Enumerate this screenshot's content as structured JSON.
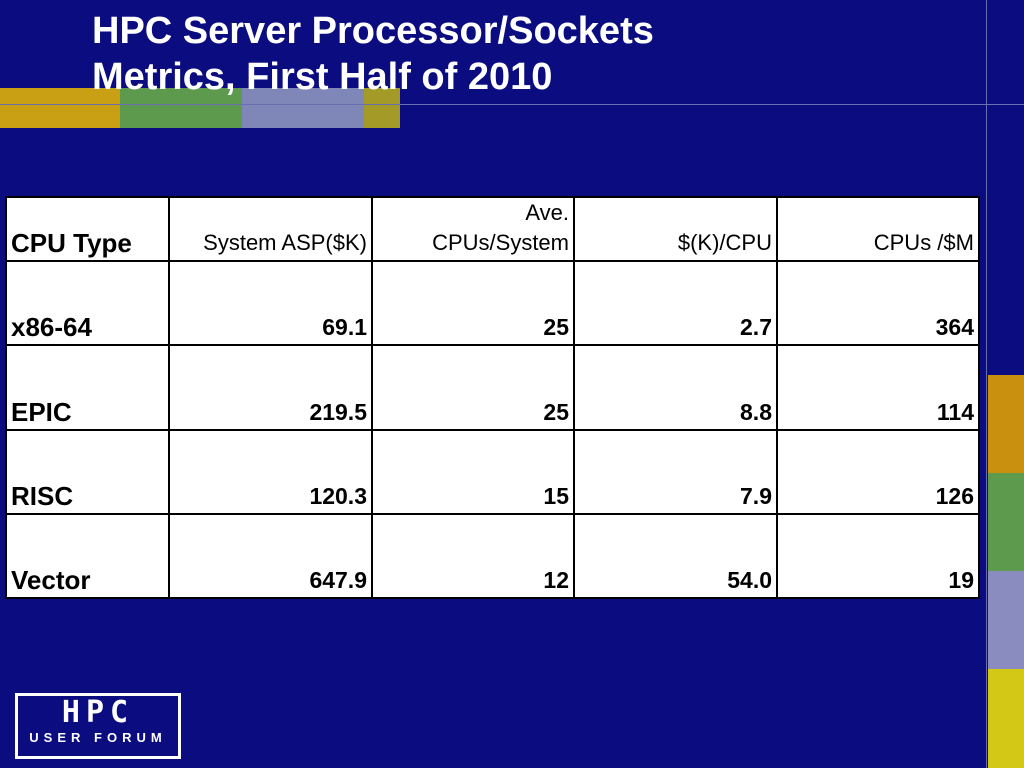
{
  "title": [
    "HPC Server Processor/Sockets",
    "Metrics, First Half of 2010"
  ],
  "table": {
    "header": [
      "CPU Type",
      "System ASP($K)",
      "Ave.\nCPUs/System",
      "$(K)/CPU",
      "CPUs /$M"
    ],
    "rows": [
      [
        "x86-64",
        "69.1",
        "25",
        "2.7",
        "364"
      ],
      [
        "EPIC",
        "219.5",
        "25",
        "8.8",
        "114"
      ],
      [
        "RISC",
        "120.3",
        "15",
        "7.9",
        "126"
      ],
      [
        "Vector",
        "647.9",
        "12",
        "54.0",
        "19"
      ]
    ]
  },
  "logo": {
    "mark": "HPC",
    "tagline": "USER FORUM"
  }
}
